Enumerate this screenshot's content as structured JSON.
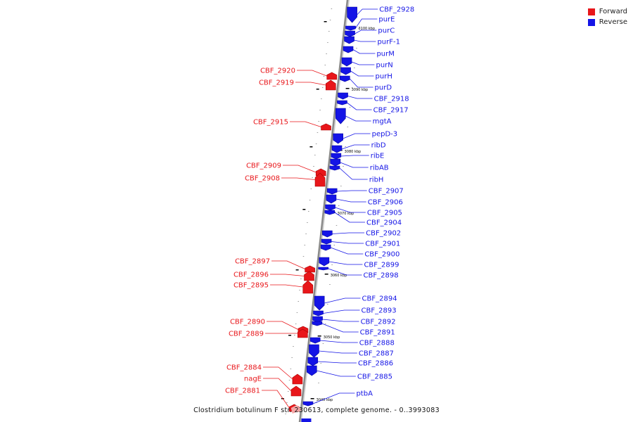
{
  "legend": {
    "forward_label": "Forward",
    "reverse_label": "Reverse",
    "forward_color": "#e8161a",
    "reverse_color": "#1414e6"
  },
  "caption": "Clostridium botulinum F str. 230613, complete genome. - 0..3993083",
  "ticks": [
    "3100 kbp",
    "3090 kbp",
    "3080 kbp",
    "3070 kbp",
    "3060 kbp",
    "3050 kbp",
    "3040 kbp"
  ],
  "forward_genes": [
    "CBF_2920",
    "CBF_2919",
    "CBF_2915",
    "CBF_2909",
    "CBF_2908",
    "CBF_2897",
    "CBF_2896",
    "CBF_2895",
    "CBF_2890",
    "CBF_2889",
    "CBF_2884",
    "nagE",
    "CBF_2881"
  ],
  "reverse_genes": [
    "CBF_2928",
    "purE",
    "purC",
    "purF-1",
    "purM",
    "purN",
    "purH",
    "purD",
    "CBF_2918",
    "CBF_2917",
    "mgtA",
    "pepD-3",
    "ribD",
    "ribE",
    "ribAB",
    "ribH",
    "CBF_2907",
    "CBF_2906",
    "CBF_2905",
    "CBF_2904",
    "CBF_2902",
    "CBF_2901",
    "CBF_2900",
    "CBF_2899",
    "CBF_2898",
    "CBF_2894",
    "CBF_2893",
    "CBF_2892",
    "CBF_2891",
    "CBF_2888",
    "CBF_2887",
    "CBF_2886",
    "CBF_2885",
    "ptbA"
  ]
}
